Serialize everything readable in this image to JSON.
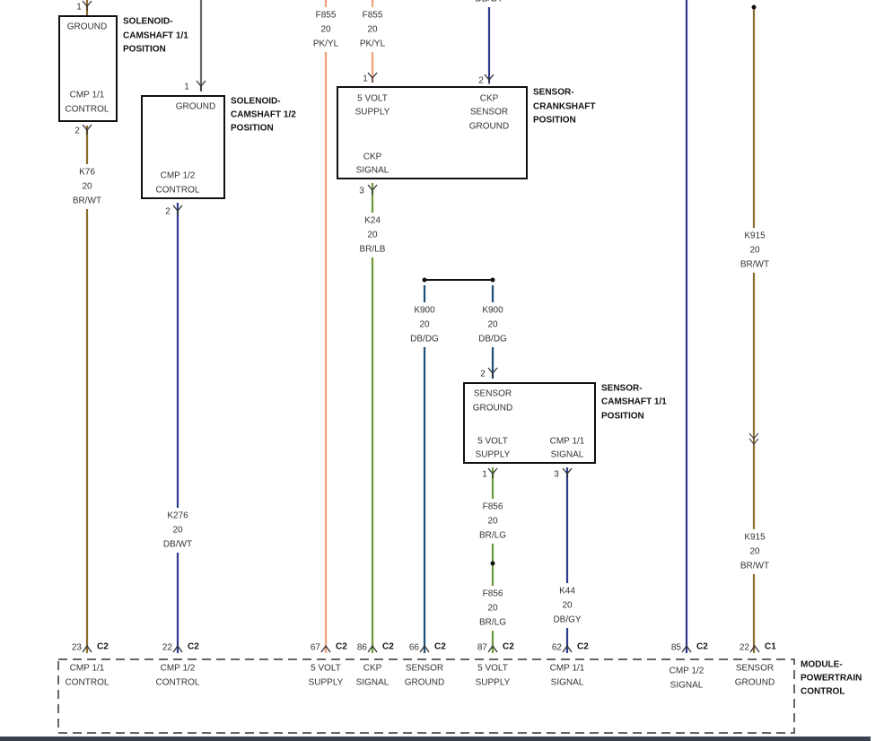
{
  "components": [
    {
      "name": [
        "SOLENOID-",
        "CAMSHAFT 1/1",
        "POSITION"
      ],
      "terminals": [
        [
          "GROUND"
        ],
        [
          "CMP 1/1",
          "CONTROL"
        ]
      ],
      "pins": [
        "1",
        "2"
      ]
    },
    {
      "name": [
        "SOLENOID-",
        "CAMSHAFT 1/2",
        "POSITION"
      ],
      "terminals": [
        [
          "GROUND"
        ],
        [
          "CMP 1/2",
          "CONTROL"
        ]
      ],
      "pins": [
        "1",
        "2"
      ]
    },
    {
      "name": [
        "SENSOR-",
        "CRANKSHAFT",
        "POSITION"
      ],
      "terminals": [
        [
          "5 VOLT",
          "SUPPLY"
        ],
        [
          "CKP",
          "SENSOR",
          "GROUND"
        ],
        [
          "CKP",
          "SIGNAL"
        ]
      ],
      "pins": [
        "1",
        "2",
        "3"
      ]
    },
    {
      "name": [
        "SENSOR-",
        "CAMSHAFT 1/1",
        "POSITION"
      ],
      "terminals": [
        [
          "SENSOR",
          "GROUND"
        ],
        [
          "5 VOLT",
          "SUPPLY"
        ],
        [
          "CMP 1/1",
          "SIGNAL"
        ]
      ],
      "pins": [
        "2",
        "1",
        "3"
      ]
    }
  ],
  "wire_labels": [
    [
      "F855",
      "20",
      "PK/YL"
    ],
    [
      "F855",
      "20",
      "PK/YL"
    ],
    [
      "DB/GY"
    ],
    [
      "K76",
      "20",
      "BR/WT"
    ],
    [
      "K24",
      "20",
      "BR/LB"
    ],
    [
      "K276",
      "20",
      "DB/WT"
    ],
    [
      "K900",
      "20",
      "DB/DG"
    ],
    [
      "K900",
      "20",
      "DB/DG"
    ],
    [
      "F856",
      "20",
      "BR/LG"
    ],
    [
      "F856",
      "20",
      "BR/LG"
    ],
    [
      "K44",
      "20",
      "DB/GY"
    ],
    [
      "K915",
      "20",
      "BR/WT"
    ],
    [
      "K915",
      "20",
      "BR/WT"
    ]
  ],
  "module": {
    "name": [
      "MODULE-",
      "POWERTRAIN",
      "CONTROL"
    ],
    "pins": [
      {
        "cavity": "23",
        "connector": "C2",
        "function": [
          "CMP 1/1",
          "CONTROL"
        ]
      },
      {
        "cavity": "22",
        "connector": "C2",
        "function": [
          "CMP 1/2",
          "CONTROL"
        ]
      },
      {
        "cavity": "67",
        "connector": "C2",
        "function": [
          "5 VOLT",
          "SUPPLY"
        ]
      },
      {
        "cavity": "86",
        "connector": "C2",
        "function": [
          "CKP",
          "SIGNAL"
        ]
      },
      {
        "cavity": "66",
        "connector": "C2",
        "function": [
          "SENSOR",
          "GROUND"
        ]
      },
      {
        "cavity": "87",
        "connector": "C2",
        "function": [
          "5 VOLT",
          "SUPPLY"
        ]
      },
      {
        "cavity": "62",
        "connector": "C2",
        "function": [
          "CMP 1/1",
          "SIGNAL"
        ]
      },
      {
        "cavity": "85",
        "connector": "C2",
        "function": [
          "CMP 1/2",
          "SIGNAL"
        ]
      },
      {
        "cavity": "22",
        "connector": "C1",
        "function": [
          "SENSOR",
          "GROUND"
        ]
      }
    ]
  }
}
